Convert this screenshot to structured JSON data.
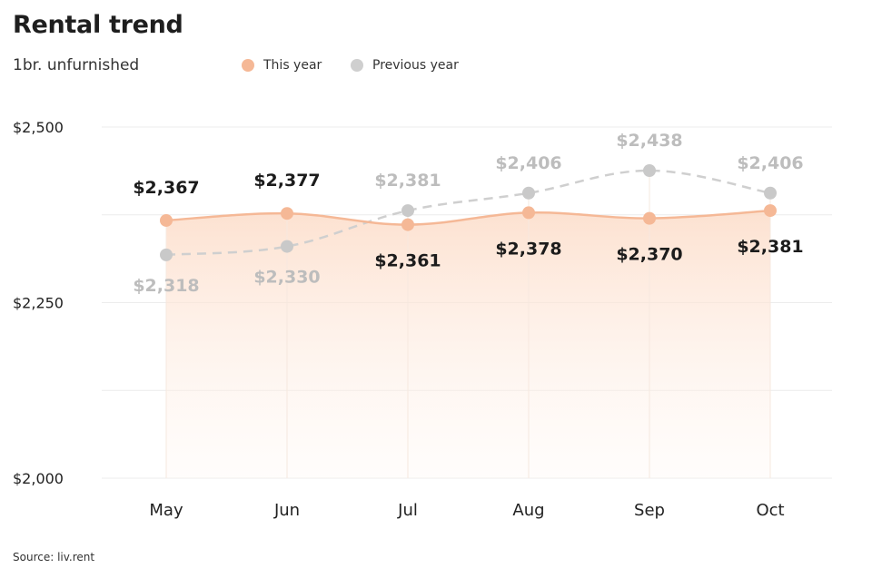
{
  "title": "Rental trend",
  "subtitle": "1br. unfurnished",
  "source": "Source: liv.rent",
  "colors": {
    "this_year": "#f5b896",
    "previous_year": "#cfcfcf",
    "this_fill": "#fde6d9"
  },
  "chart_data": {
    "type": "line",
    "title": "Rental trend",
    "subtitle": "1br. unfurnished",
    "categories": [
      "May",
      "Jun",
      "Jul",
      "Aug",
      "Sep",
      "Oct"
    ],
    "ylim": [
      2000,
      2500
    ],
    "yticks": [
      2000,
      2250,
      2500
    ],
    "ytick_labels": [
      "$2,000",
      "$2,250",
      "$2,500"
    ],
    "grid": true,
    "legend_position": "top",
    "series": [
      {
        "name": "This year",
        "values": [
          2367,
          2377,
          2361,
          2378,
          2370,
          2381
        ],
        "labels": [
          "$2,367",
          "$2,377",
          "$2,361",
          "$2,378",
          "$2,370",
          "$2,381"
        ],
        "style": "solid-area"
      },
      {
        "name": "Previous year",
        "values": [
          2318,
          2330,
          2381,
          2406,
          2438,
          2406
        ],
        "labels": [
          "$2,318",
          "$2,330",
          "$2,381",
          "$2,406",
          "$2,438",
          "$2,406"
        ],
        "style": "dashed"
      }
    ]
  }
}
